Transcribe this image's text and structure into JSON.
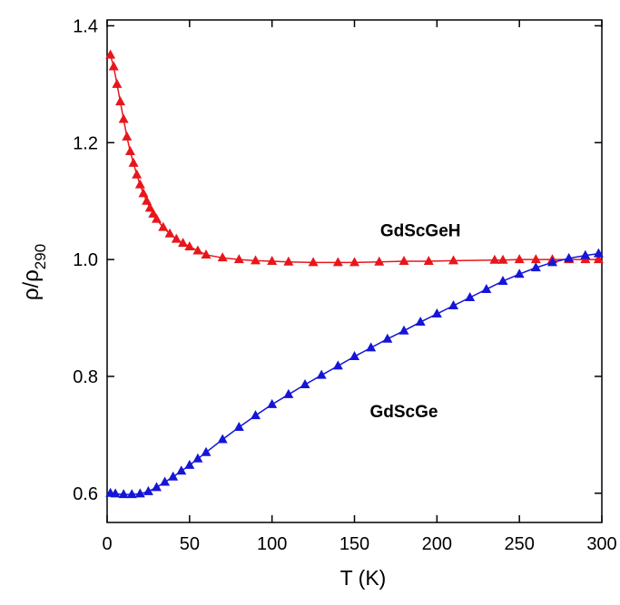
{
  "chart_data": {
    "type": "line",
    "x_label": "T (K)",
    "y_label": "ρ/ρ",
    "y_label_subscript": "290",
    "xlim": [
      0,
      300
    ],
    "ylim": [
      0.55,
      1.41
    ],
    "xticks": [
      0,
      50,
      100,
      150,
      200,
      250,
      300
    ],
    "yticks": [
      0.6,
      0.8,
      {
        "value": 1,
        "label": "1.0"
      },
      1.2,
      1.4
    ],
    "annotations": [
      {
        "text": "GdScGeH",
        "x": 190,
        "y": 1.04,
        "color": "#e8161b"
      },
      {
        "text": "GdScGe",
        "x": 180,
        "y": 0.73,
        "color": "#1515d8"
      }
    ],
    "series": [
      {
        "name": "GdScGeH",
        "color": "#e8161b",
        "x": [
          2,
          4,
          6,
          8,
          10,
          12,
          14,
          16,
          18,
          20,
          22,
          24,
          26,
          28,
          30,
          34,
          38,
          42,
          46,
          50,
          55,
          60,
          70,
          80,
          90,
          100,
          110,
          125,
          140,
          150,
          165,
          180,
          195,
          210,
          235,
          240,
          250,
          260,
          270,
          280,
          290,
          298
        ],
        "values": [
          1.35,
          1.33,
          1.3,
          1.27,
          1.24,
          1.21,
          1.185,
          1.165,
          1.145,
          1.128,
          1.113,
          1.1,
          1.088,
          1.078,
          1.069,
          1.055,
          1.044,
          1.035,
          1.028,
          1.022,
          1.015,
          1.008,
          1.003,
          1.0,
          0.998,
          0.997,
          0.996,
          0.995,
          0.995,
          0.995,
          0.996,
          0.997,
          0.997,
          0.998,
          0.999,
          0.999,
          1.0,
          1.0,
          1.0,
          1.0,
          1.0,
          1.0
        ]
      },
      {
        "name": "GdScGe",
        "color": "#1515d8",
        "x": [
          2,
          5,
          10,
          15,
          20,
          25,
          30,
          35,
          40,
          45,
          50,
          55,
          60,
          70,
          80,
          90,
          100,
          110,
          120,
          130,
          140,
          150,
          160,
          170,
          180,
          190,
          200,
          210,
          220,
          230,
          240,
          250,
          260,
          270,
          280,
          290,
          298
        ],
        "values": [
          0.6,
          0.599,
          0.598,
          0.598,
          0.599,
          0.603,
          0.61,
          0.619,
          0.628,
          0.638,
          0.648,
          0.659,
          0.67,
          0.692,
          0.713,
          0.733,
          0.752,
          0.769,
          0.786,
          0.802,
          0.818,
          0.834,
          0.849,
          0.864,
          0.878,
          0.893,
          0.907,
          0.921,
          0.935,
          0.949,
          0.963,
          0.975,
          0.986,
          0.995,
          1.002,
          1.007,
          1.01
        ]
      }
    ]
  }
}
